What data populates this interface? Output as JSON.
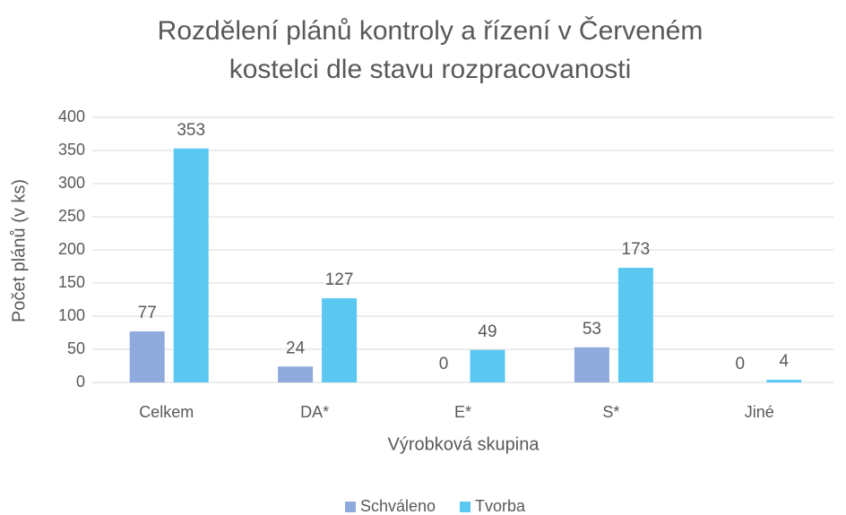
{
  "chart_data": {
    "type": "bar",
    "title": [
      "Rozdělení plánů kontroly a řízení v Červeném",
      "kostelci dle stavu rozpracovanosti"
    ],
    "x_label": "Výrobková skupina",
    "y_label": "Počet plánů (v ks)",
    "categories": [
      "Celkem",
      "DA*",
      "E*",
      "S*",
      "Jiné"
    ],
    "series": [
      {
        "name": "Schváleno",
        "color": "#8faadc",
        "values": [
          77,
          24,
          0,
          53,
          0
        ]
      },
      {
        "name": "Tvorba",
        "color": "#5bc8f2",
        "values": [
          353,
          127,
          49,
          173,
          4
        ]
      }
    ],
    "ylim": [
      0,
      400
    ],
    "yticks": [
      0,
      50,
      100,
      150,
      200,
      250,
      300,
      350,
      400
    ],
    "grid": true,
    "legend": "bottom"
  }
}
